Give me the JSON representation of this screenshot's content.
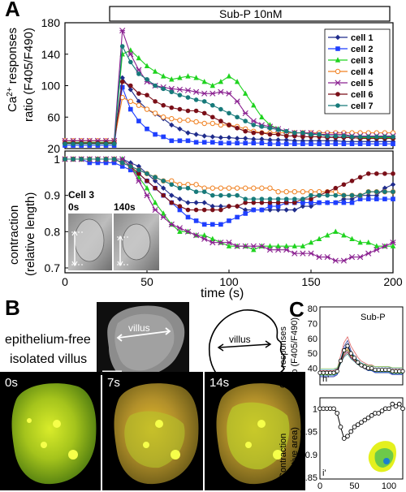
{
  "panels": {
    "A": "A",
    "B": "B",
    "C": "C"
  },
  "panelA": {
    "stimulus_label": "Sub-P 10nM",
    "inset_label": "Cell 3",
    "inset_times": [
      "0s",
      "140s"
    ]
  },
  "panelB": {
    "label_line1": "epithelium-free",
    "label_line2": "isolated villus",
    "villus_label": "villus",
    "schematic_label": "villus",
    "frame_times": [
      "0s",
      "7s",
      "14s"
    ]
  },
  "panelC": {
    "stimulus_label": "Sub-P",
    "sublabel_top": "h'",
    "sublabel_bottom": "i'"
  },
  "colors": {
    "cell1": "#1f2c8c",
    "cell2": "#1f3fff",
    "cell3": "#1fd31f",
    "cell4": "#f08020",
    "cell5": "#8a2090",
    "cell6": "#7a0f18",
    "cell7": "#177a7a"
  },
  "chart_data": [
    {
      "type": "line",
      "panel": "A-top",
      "xlabel": "",
      "ylabel": "Ca2+ responses ratio (F405/F490)",
      "xlim": [
        0,
        200
      ],
      "ylim": [
        20,
        180
      ],
      "yticks": [
        20,
        60,
        100,
        140,
        180
      ],
      "ytick_labels": [
        "20",
        "60",
        "100",
        "140",
        "180"
      ],
      "legend_position": "top-right",
      "x": [
        0,
        5,
        10,
        15,
        20,
        25,
        30,
        35,
        40,
        45,
        50,
        55,
        60,
        65,
        70,
        75,
        80,
        85,
        90,
        95,
        100,
        105,
        110,
        115,
        120,
        125,
        130,
        135,
        140,
        145,
        150,
        155,
        160,
        165,
        170,
        175,
        180,
        185,
        190,
        195,
        200
      ],
      "series": [
        {
          "name": "cell 1",
          "color_key": "cell1",
          "marker": "diamond",
          "values": [
            27,
            27,
            27,
            27,
            27,
            27,
            27,
            110,
            95,
            80,
            70,
            64,
            58,
            50,
            45,
            40,
            38,
            36,
            35,
            34,
            34,
            33,
            33,
            32,
            32,
            31,
            31,
            31,
            30,
            30,
            30,
            30,
            30,
            30,
            29,
            29,
            29,
            29,
            29,
            29,
            29
          ]
        },
        {
          "name": "cell 2",
          "color_key": "cell2",
          "marker": "square",
          "values": [
            24,
            24,
            24,
            24,
            24,
            24,
            24,
            98,
            70,
            55,
            45,
            38,
            35,
            30,
            30,
            30,
            28,
            28,
            28,
            27,
            27,
            27,
            27,
            27,
            27,
            26,
            26,
            26,
            26,
            26,
            26,
            26,
            26,
            26,
            26,
            26,
            26,
            26,
            26,
            26,
            26
          ]
        },
        {
          "name": "cell 3",
          "color_key": "cell3",
          "marker": "triangle",
          "values": [
            28,
            28,
            28,
            28,
            28,
            28,
            28,
            140,
            145,
            135,
            125,
            118,
            112,
            108,
            110,
            112,
            110,
            105,
            100,
            105,
            112,
            105,
            90,
            75,
            60,
            50,
            45,
            40,
            40,
            40,
            38,
            38,
            36,
            36,
            36,
            36,
            34,
            34,
            34,
            34,
            34
          ]
        },
        {
          "name": "cell 4",
          "color_key": "cell4",
          "marker": "circle-open",
          "values": [
            30,
            30,
            30,
            30,
            30,
            30,
            30,
            85,
            80,
            75,
            70,
            65,
            60,
            58,
            56,
            56,
            54,
            52,
            52,
            50,
            50,
            48,
            45,
            42,
            40,
            40,
            40,
            40,
            40,
            40,
            40,
            40,
            40,
            40,
            40,
            40,
            40,
            40,
            40,
            40,
            40
          ]
        },
        {
          "name": "cell 5",
          "color_key": "cell5",
          "marker": "star",
          "values": [
            30,
            30,
            30,
            30,
            30,
            30,
            30,
            170,
            140,
            120,
            105,
            100,
            98,
            96,
            95,
            94,
            92,
            90,
            90,
            92,
            90,
            80,
            65,
            55,
            50,
            48,
            45,
            42,
            40,
            40,
            40,
            38,
            38,
            38,
            38,
            36,
            36,
            36,
            36,
            36,
            36
          ]
        },
        {
          "name": "cell 6",
          "color_key": "cell6",
          "marker": "circle",
          "values": [
            27,
            27,
            27,
            27,
            27,
            27,
            27,
            105,
            100,
            90,
            88,
            80,
            75,
            72,
            70,
            68,
            68,
            65,
            60,
            55,
            50,
            46,
            42,
            40,
            40,
            38,
            38,
            36,
            36,
            35,
            35,
            35,
            34,
            34,
            34,
            34,
            33,
            33,
            33,
            33,
            33
          ]
        },
        {
          "name": "cell 7",
          "color_key": "cell7",
          "marker": "circle",
          "values": [
            26,
            26,
            26,
            26,
            26,
            26,
            26,
            150,
            130,
            115,
            108,
            100,
            96,
            92,
            88,
            85,
            82,
            80,
            75,
            70,
            65,
            60,
            55,
            50,
            48,
            46,
            44,
            42,
            40,
            40,
            38,
            38,
            36,
            36,
            36,
            35,
            35,
            35,
            35,
            35,
            35
          ]
        }
      ]
    },
    {
      "type": "line",
      "panel": "A-bottom",
      "xlabel": "time (s)",
      "ylabel": "contraction (relative length)",
      "xlim": [
        0,
        200
      ],
      "ylim": [
        0.7,
        1.0
      ],
      "xticks": [
        0,
        50,
        100,
        150,
        200
      ],
      "xtick_labels": [
        "0",
        "50",
        "100",
        "150",
        "200"
      ],
      "yticks": [
        0.7,
        0.8,
        0.9,
        1.0
      ],
      "ytick_labels": [
        "0.7",
        "0.8",
        "0.9",
        "1"
      ],
      "x": [
        0,
        5,
        10,
        15,
        20,
        25,
        30,
        35,
        40,
        45,
        50,
        55,
        60,
        65,
        70,
        75,
        80,
        85,
        90,
        95,
        100,
        105,
        110,
        115,
        120,
        125,
        130,
        135,
        140,
        145,
        150,
        155,
        160,
        165,
        170,
        175,
        180,
        185,
        190,
        195,
        200
      ],
      "series": [
        {
          "name": "cell 1",
          "color_key": "cell1",
          "values": [
            1.0,
            1.0,
            1.0,
            1.0,
            1.0,
            1.0,
            1.0,
            1.0,
            0.99,
            0.98,
            0.96,
            0.94,
            0.92,
            0.9,
            0.89,
            0.88,
            0.88,
            0.88,
            0.87,
            0.87,
            0.87,
            0.87,
            0.86,
            0.86,
            0.86,
            0.86,
            0.86,
            0.86,
            0.86,
            0.87,
            0.87,
            0.88,
            0.88,
            0.88,
            0.89,
            0.89,
            0.9,
            0.9,
            0.9,
            0.92,
            0.93
          ]
        },
        {
          "name": "cell 2",
          "color_key": "cell2",
          "values": [
            1.0,
            1.0,
            1.0,
            0.99,
            0.99,
            0.99,
            0.99,
            0.98,
            0.97,
            0.96,
            0.94,
            0.92,
            0.9,
            0.88,
            0.86,
            0.84,
            0.83,
            0.82,
            0.82,
            0.82,
            0.83,
            0.84,
            0.85,
            0.86,
            0.86,
            0.87,
            0.87,
            0.88,
            0.88,
            0.88,
            0.88,
            0.88,
            0.88,
            0.88,
            0.88,
            0.88,
            0.89,
            0.89,
            0.89,
            0.89,
            0.89
          ]
        },
        {
          "name": "cell 3",
          "color_key": "cell3",
          "values": [
            1.0,
            1.0,
            1.0,
            1.0,
            1.0,
            1.0,
            1.0,
            1.0,
            0.98,
            0.95,
            0.92,
            0.88,
            0.85,
            0.82,
            0.8,
            0.8,
            0.79,
            0.79,
            0.78,
            0.77,
            0.76,
            0.76,
            0.76,
            0.75,
            0.76,
            0.76,
            0.76,
            0.76,
            0.76,
            0.76,
            0.77,
            0.78,
            0.79,
            0.8,
            0.79,
            0.78,
            0.77,
            0.77,
            0.76,
            0.76,
            0.76
          ]
        },
        {
          "name": "cell 4",
          "color_key": "cell4",
          "values": [
            1.0,
            1.0,
            1.0,
            1.0,
            1.0,
            1.0,
            1.0,
            0.99,
            0.98,
            0.97,
            0.96,
            0.95,
            0.94,
            0.94,
            0.93,
            0.93,
            0.93,
            0.92,
            0.92,
            0.92,
            0.92,
            0.92,
            0.92,
            0.92,
            0.92,
            0.92,
            0.91,
            0.91,
            0.91,
            0.91,
            0.91,
            0.91,
            0.91,
            0.91,
            0.9,
            0.9,
            0.9,
            0.91,
            0.91,
            0.91,
            0.91
          ]
        },
        {
          "name": "cell 5",
          "color_key": "cell5",
          "values": [
            1.0,
            1.0,
            1.0,
            1.0,
            1.0,
            1.0,
            1.0,
            1.0,
            0.98,
            0.94,
            0.9,
            0.86,
            0.84,
            0.82,
            0.81,
            0.8,
            0.79,
            0.78,
            0.77,
            0.77,
            0.77,
            0.76,
            0.76,
            0.76,
            0.76,
            0.75,
            0.75,
            0.75,
            0.74,
            0.74,
            0.74,
            0.73,
            0.73,
            0.72,
            0.72,
            0.73,
            0.73,
            0.74,
            0.75,
            0.76,
            0.77
          ]
        },
        {
          "name": "cell 6",
          "color_key": "cell6",
          "values": [
            1.0,
            1.0,
            1.0,
            1.0,
            1.0,
            1.0,
            1.0,
            0.99,
            0.98,
            0.96,
            0.94,
            0.92,
            0.9,
            0.88,
            0.87,
            0.86,
            0.86,
            0.86,
            0.86,
            0.86,
            0.87,
            0.87,
            0.88,
            0.88,
            0.88,
            0.88,
            0.88,
            0.88,
            0.88,
            0.89,
            0.89,
            0.9,
            0.91,
            0.92,
            0.93,
            0.94,
            0.95,
            0.96,
            0.96,
            0.96,
            0.96
          ]
        },
        {
          "name": "cell 7",
          "color_key": "cell7",
          "values": [
            1.0,
            1.0,
            1.0,
            1.0,
            1.0,
            1.0,
            1.0,
            0.99,
            0.98,
            0.97,
            0.96,
            0.95,
            0.94,
            0.93,
            0.92,
            0.92,
            0.91,
            0.91,
            0.9,
            0.9,
            0.9,
            0.9,
            0.89,
            0.89,
            0.89,
            0.89,
            0.89,
            0.89,
            0.89,
            0.89,
            0.9,
            0.9,
            0.9,
            0.9,
            0.9,
            0.9,
            0.9,
            0.91,
            0.91,
            0.91,
            0.91
          ]
        }
      ]
    },
    {
      "type": "line",
      "panel": "C-top",
      "xlabel": "",
      "ylabel": "Ca2+ responses ratio (F405/F490)",
      "ylim": [
        30,
        80
      ],
      "yticks": [
        40,
        50,
        60,
        70,
        80
      ],
      "ytick_labels": [
        "40",
        "50",
        "60",
        "70",
        "80"
      ],
      "xlim": [
        0,
        120
      ],
      "mean": {
        "x": [
          0,
          5,
          10,
          15,
          20,
          25,
          30,
          35,
          40,
          45,
          50,
          55,
          60,
          65,
          70,
          75,
          80,
          85,
          90,
          95,
          100,
          105,
          110,
          115,
          120
        ],
        "values": [
          37,
          37,
          37,
          37,
          37,
          38,
          45,
          52,
          55,
          50,
          47,
          44,
          42,
          41,
          40,
          40,
          39,
          39,
          39,
          39,
          39,
          38,
          38,
          38,
          38
        ]
      }
    },
    {
      "type": "line",
      "panel": "C-bottom",
      "xlabel": "",
      "ylabel": "Contraction (relative area)",
      "xlim": [
        0,
        120
      ],
      "ylim": [
        0.85,
        1.02
      ],
      "xticks": [
        0,
        50,
        100
      ],
      "xtick_labels": [
        "0",
        "50",
        "100"
      ],
      "yticks": [
        0.85,
        0.9,
        0.95,
        1
      ],
      "ytick_labels": [
        "0.85",
        "0.9",
        "0.95",
        "1"
      ],
      "x": [
        0,
        5,
        10,
        15,
        20,
        25,
        30,
        35,
        40,
        45,
        50,
        55,
        60,
        65,
        70,
        75,
        80,
        85,
        90,
        95,
        100,
        105,
        110,
        115,
        120
      ],
      "values": [
        1.0,
        1.0,
        1.0,
        1.0,
        1.0,
        0.99,
        0.96,
        0.935,
        0.94,
        0.95,
        0.96,
        0.965,
        0.97,
        0.975,
        0.98,
        0.985,
        0.99,
        0.99,
        0.995,
        1.0,
        1.0,
        1.01,
        1.005,
        1.01,
        1.0
      ]
    }
  ]
}
